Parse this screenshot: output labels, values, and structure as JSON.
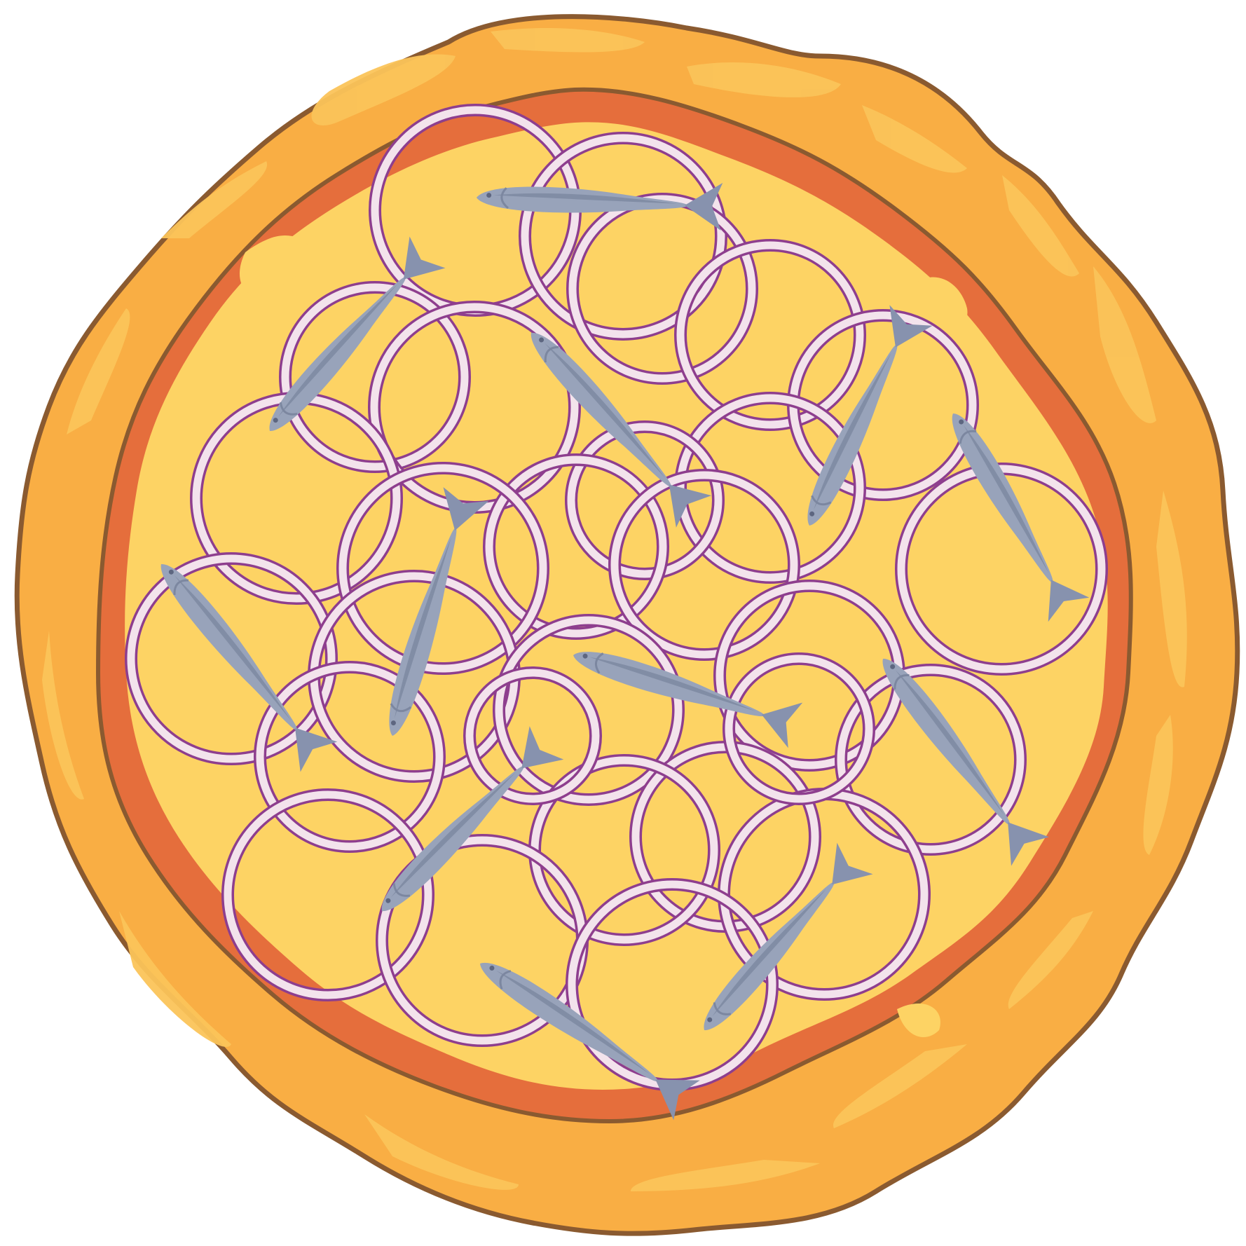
{
  "illustration": {
    "subject": "pizza",
    "toppings": [
      "onion-ring",
      "sardine"
    ],
    "onion_ring_count": 28,
    "sardine_count": 12
  },
  "colors": {
    "crust": "#F9AE44",
    "crust_highlight": "#FBC45A",
    "crust_outline": "#8A5A30",
    "sauce": "#E56E3C",
    "cheese": "#FDD364",
    "onion_inner": "#F3E3EC",
    "onion_edge": "#8E3E8E",
    "fish_body": "#98A3BA",
    "fish_shadow": "#7C87A0",
    "fish_fin": "#8792AE"
  }
}
